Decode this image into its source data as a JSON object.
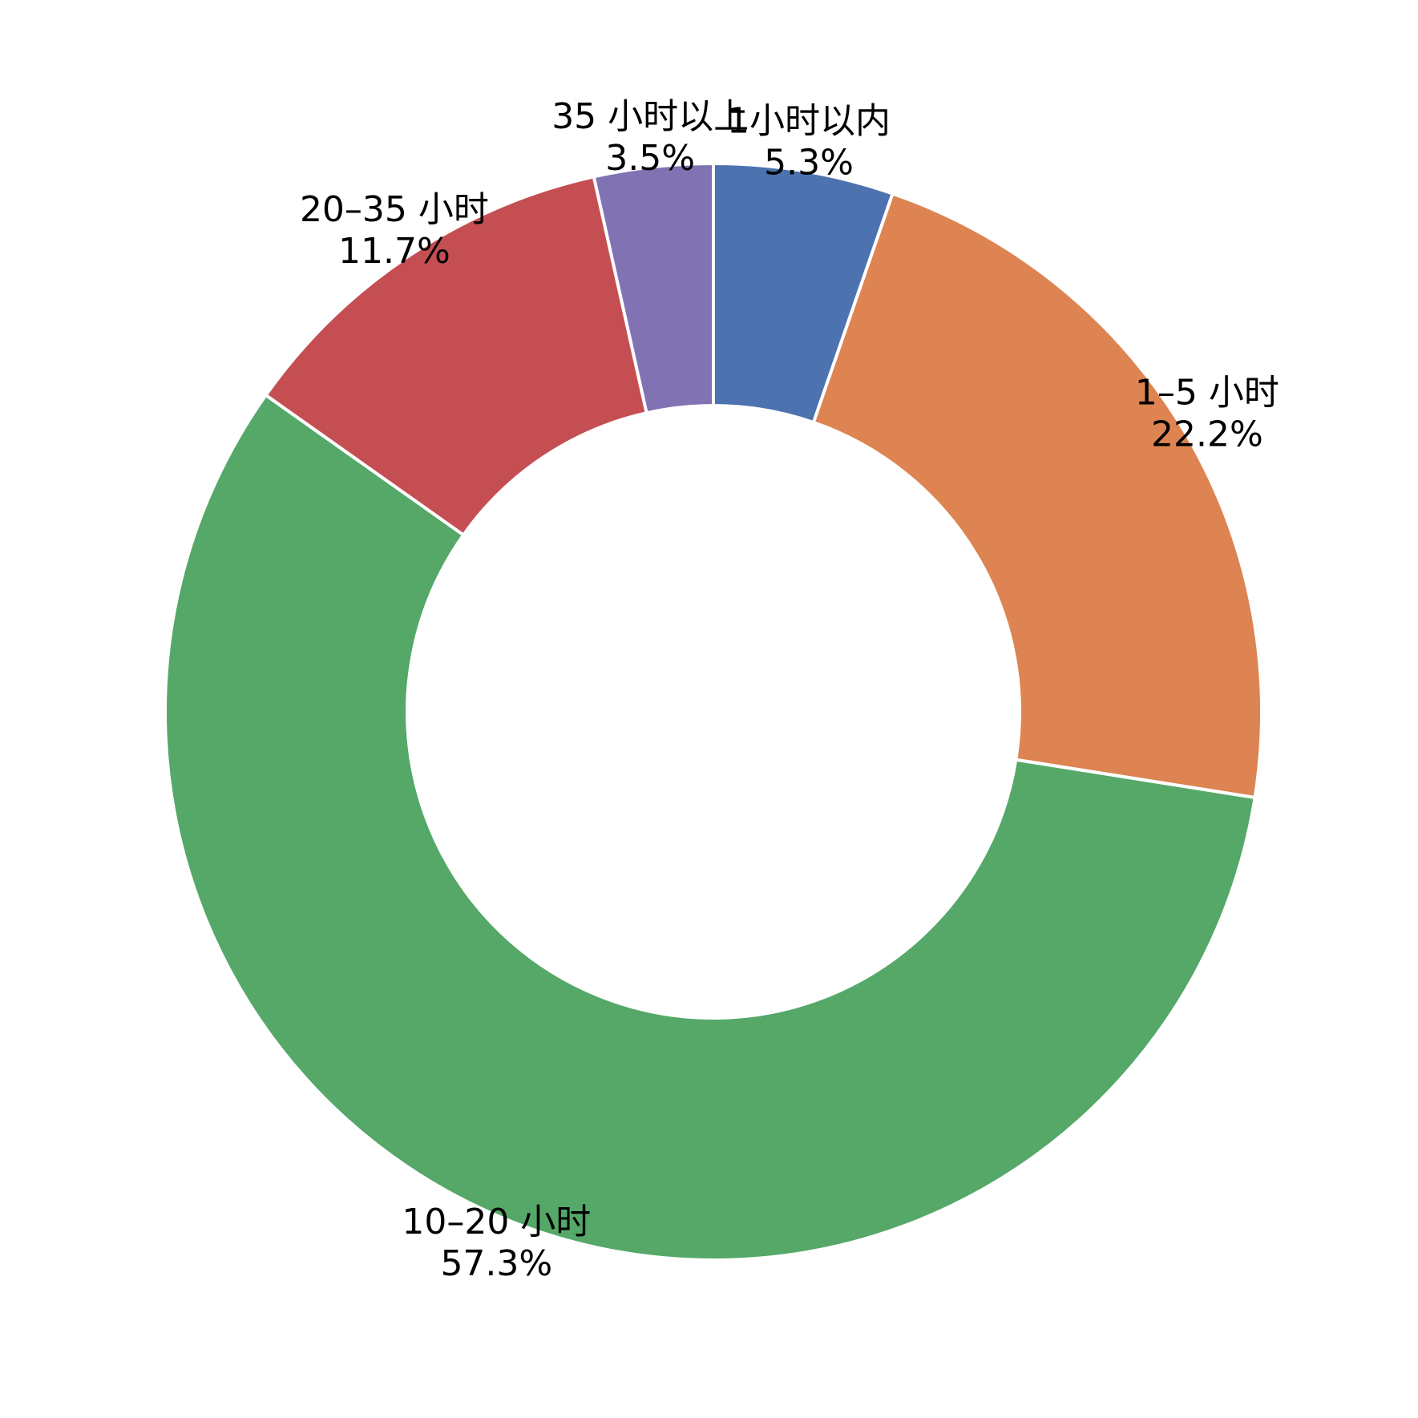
{
  "chart_data": {
    "type": "donut",
    "categories": [
      "1小时以内",
      "1–5 小时",
      "10–20 小时",
      "20–35 小时",
      "35 小时以上"
    ],
    "values": [
      5.3,
      22.2,
      57.3,
      11.7,
      3.5
    ],
    "value_labels": [
      "5.3%",
      "22.2%",
      "57.3%",
      "11.7%",
      "3.5%"
    ],
    "colors": [
      "#4c72b0",
      "#dd8452",
      "#55a868",
      "#c44e52",
      "#8172b3"
    ]
  }
}
